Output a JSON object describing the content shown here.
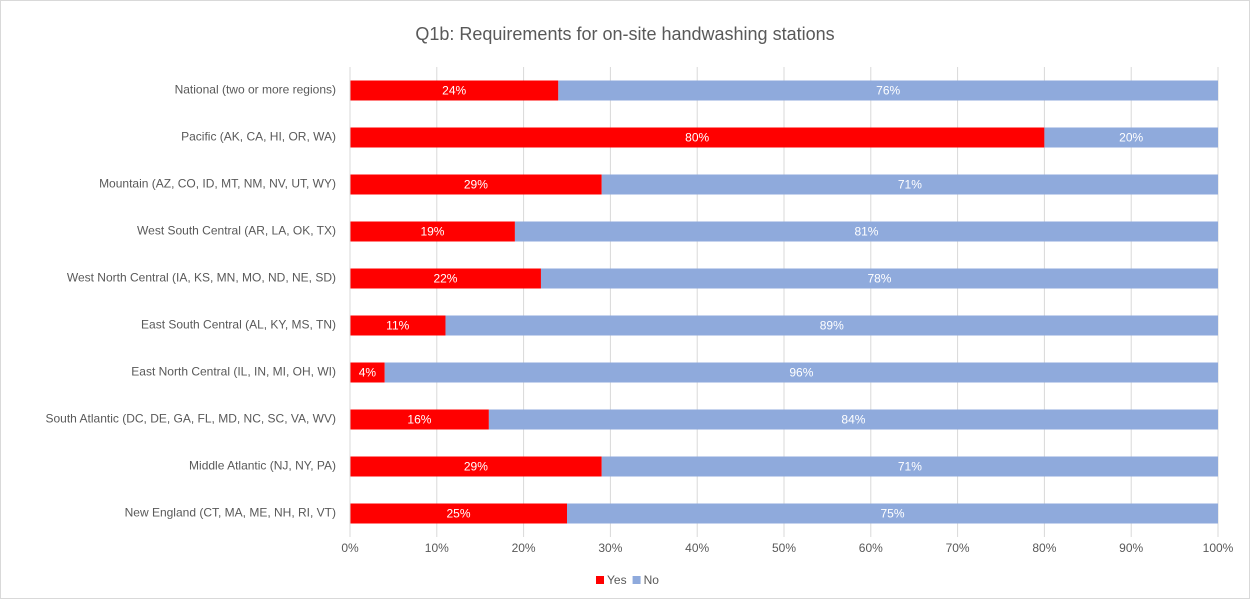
{
  "chart_data": {
    "type": "stacked_barh",
    "title": "Q1b: Requirements for on-site handwashing stations",
    "categories": [
      "National (two or more regions)",
      "Pacific (AK, CA, HI, OR, WA)",
      "Mountain (AZ, CO, ID, MT, NM, NV, UT, WY)",
      "West South Central (AR, LA, OK, TX)",
      "West North Central (IA, KS, MN, MO, ND, NE, SD)",
      "East South Central (AL, KY, MS, TN)",
      "East North Central (IL, IN, MI, OH, WI)",
      "South Atlantic (DC, DE, GA, FL, MD, NC, SC, VA, WV)",
      "Middle Atlantic (NJ, NY, PA)",
      "New England (CT, MA, ME, NH, RI, VT)"
    ],
    "series": [
      {
        "name": "Yes",
        "color": "#ff0000",
        "values": [
          24,
          80,
          29,
          19,
          22,
          11,
          4,
          16,
          29,
          25
        ],
        "value_labels": [
          "24%",
          "80%",
          "29%",
          "19%",
          "22%",
          "11%",
          "4%",
          "16%",
          "29%",
          "25%"
        ]
      },
      {
        "name": "No",
        "color": "#8faadc",
        "values": [
          76,
          20,
          71,
          81,
          78,
          89,
          96,
          84,
          71,
          75
        ],
        "value_labels": [
          "76%",
          "20%",
          "71%",
          "81%",
          "78%",
          "89%",
          "96%",
          "84%",
          "71%",
          "75%"
        ]
      }
    ],
    "xlim": [
      0,
      100
    ],
    "xticks": [
      {
        "value": 0,
        "label": "0%"
      },
      {
        "value": 10,
        "label": "10%"
      },
      {
        "value": 20,
        "label": "20%"
      },
      {
        "value": 30,
        "label": "30%"
      },
      {
        "value": 40,
        "label": "40%"
      },
      {
        "value": 50,
        "label": "50%"
      },
      {
        "value": 60,
        "label": "60%"
      },
      {
        "value": 70,
        "label": "70%"
      },
      {
        "value": 80,
        "label": "80%"
      },
      {
        "value": 90,
        "label": "90%"
      },
      {
        "value": 100,
        "label": "100%"
      }
    ],
    "grid": true,
    "legend": "bottom"
  }
}
